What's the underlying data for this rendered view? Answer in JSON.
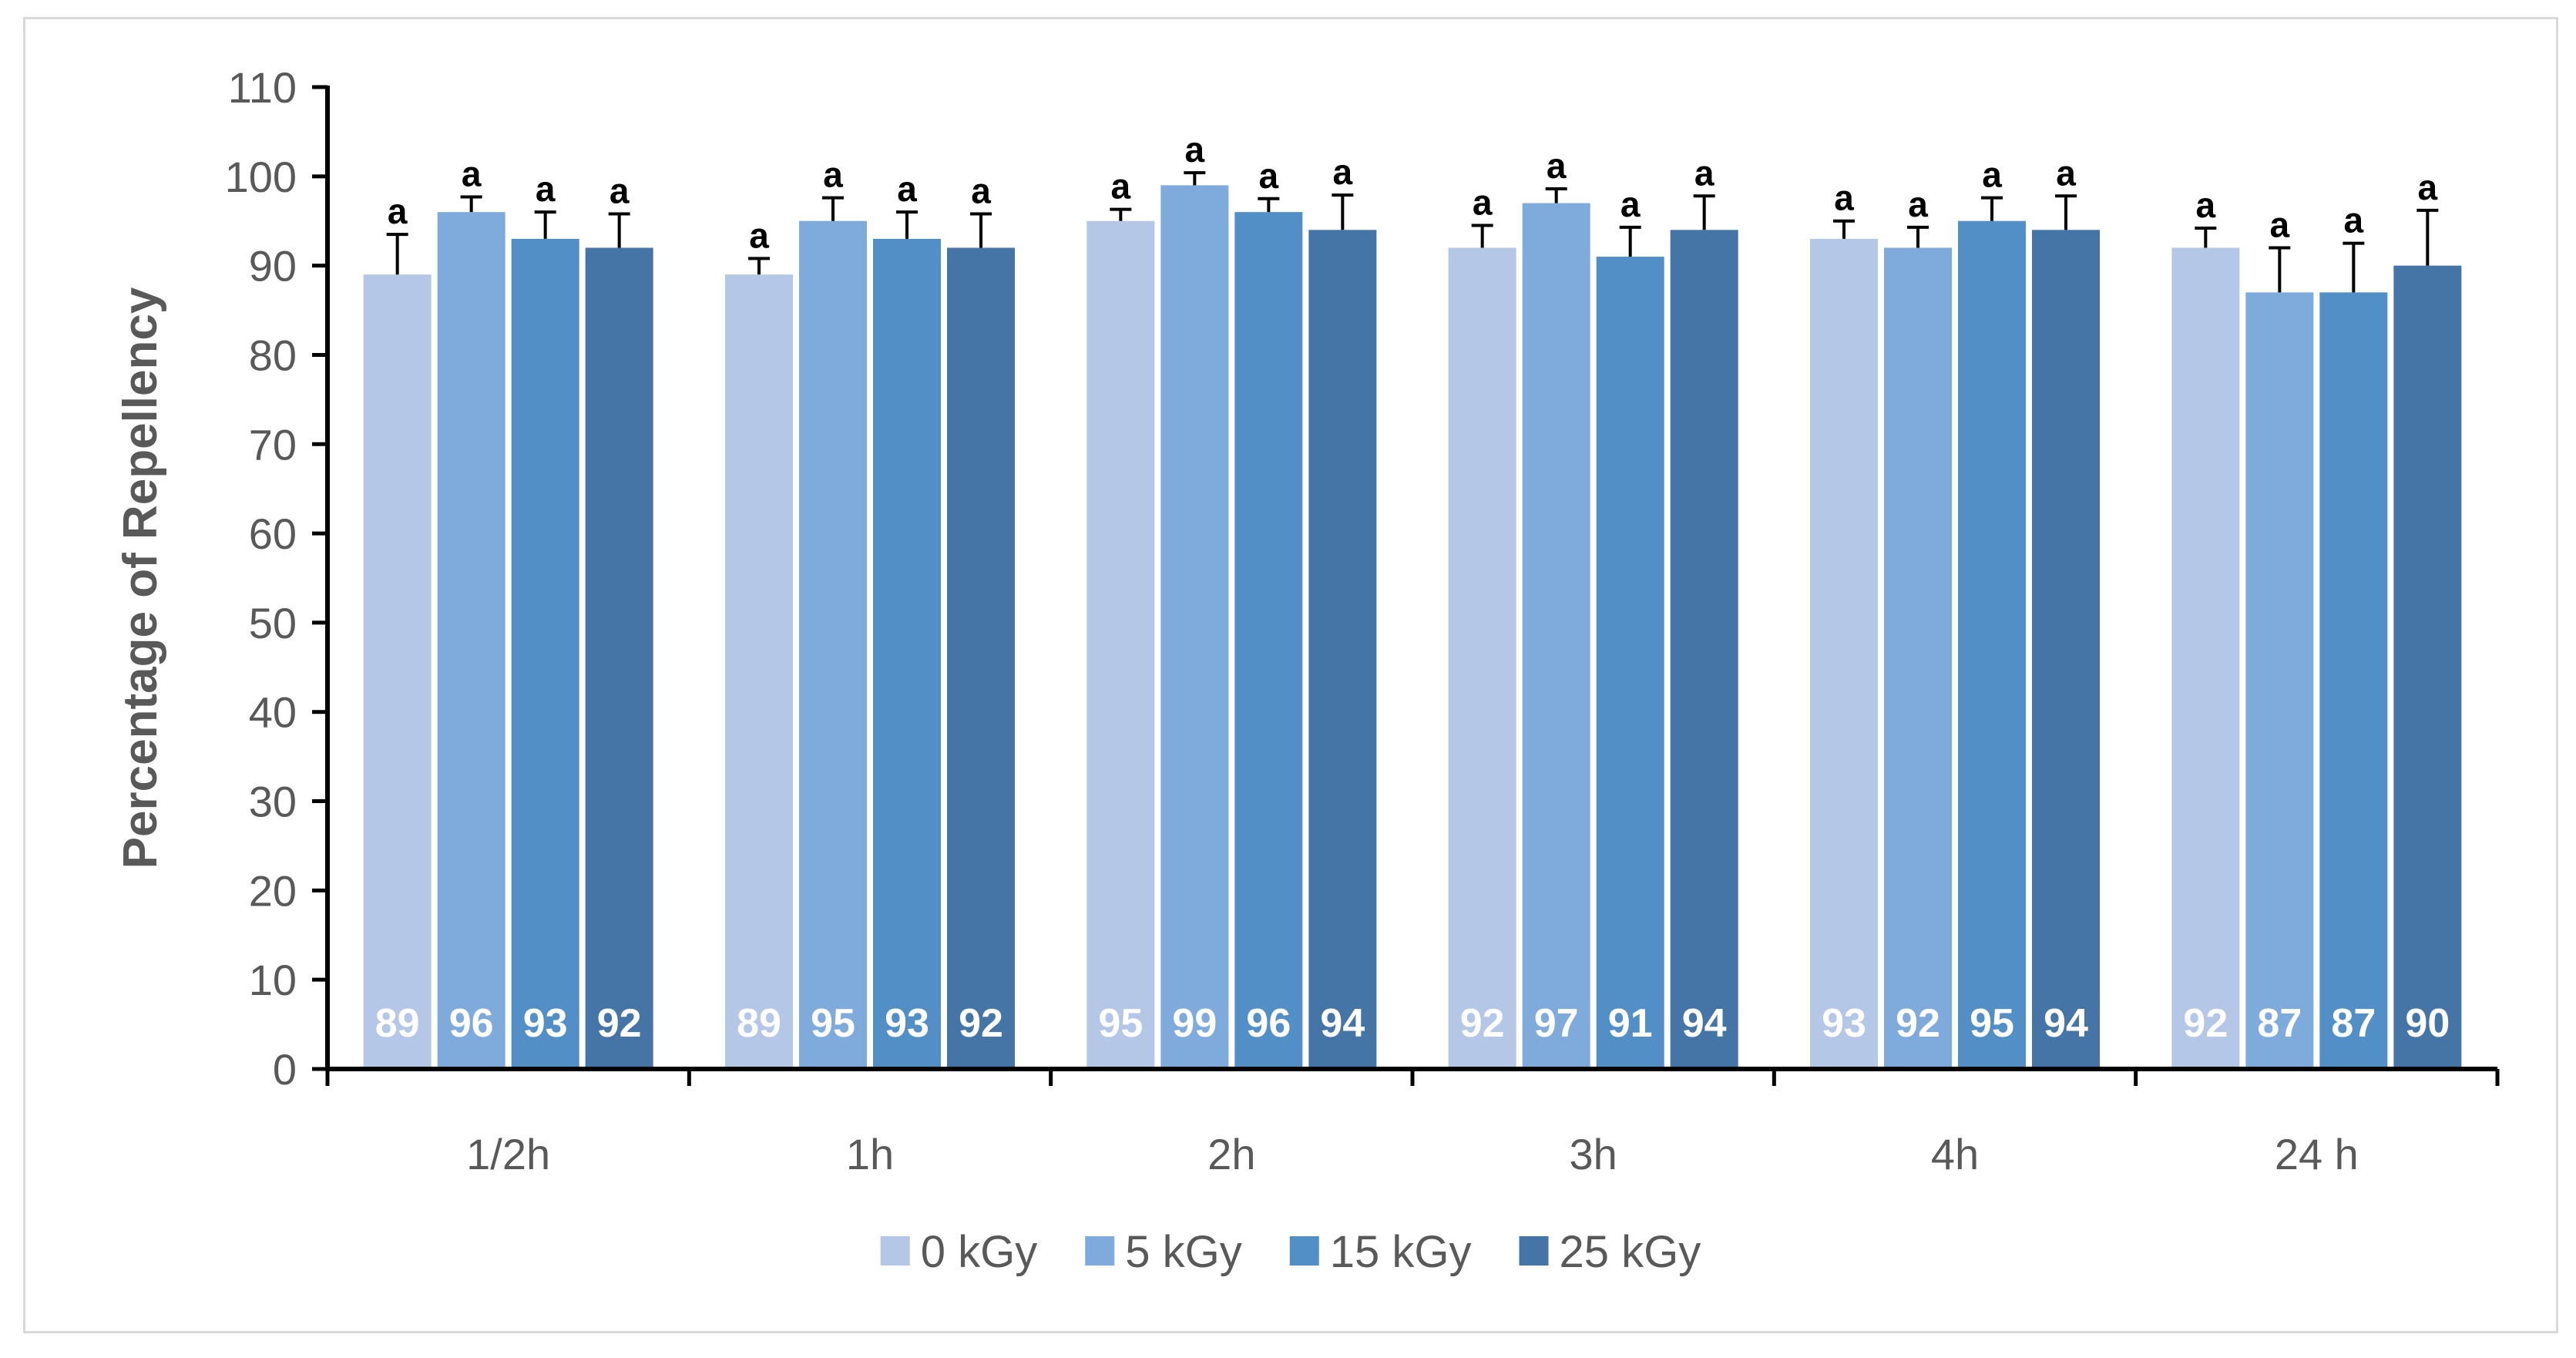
{
  "chart_data": {
    "type": "bar",
    "title": "",
    "xlabel": "",
    "ylabel": "Percentage of Repellency",
    "ylim": [
      0,
      110
    ],
    "yticks": [
      0,
      10,
      20,
      30,
      40,
      50,
      60,
      70,
      80,
      90,
      100,
      110
    ],
    "grid": false,
    "legend_position": "bottom",
    "categories": [
      "1/2h",
      "1h",
      "2h",
      "3h",
      "4h",
      "24 h"
    ],
    "series": [
      {
        "name": "0 kGy",
        "color": "#b4c7e7",
        "values": [
          89,
          89,
          95,
          92,
          93,
          92
        ],
        "errors": [
          4.5,
          1.8,
          1.3,
          2.5,
          2.0,
          2.2
        ],
        "significance": [
          "a",
          "a",
          "a",
          "a",
          "a",
          "a"
        ]
      },
      {
        "name": "5 kGy",
        "color": "#7faadc",
        "values": [
          96,
          95,
          99,
          97,
          92,
          87
        ],
        "errors": [
          1.7,
          2.6,
          1.4,
          1.6,
          2.3,
          5.0
        ],
        "significance": [
          "a",
          "a",
          "a",
          "a",
          "a",
          "a"
        ]
      },
      {
        "name": "15 kGy",
        "color": "#528fc6",
        "values": [
          93,
          93,
          96,
          91,
          95,
          87
        ],
        "errors": [
          3.0,
          3.0,
          1.5,
          3.3,
          2.6,
          5.5
        ],
        "significance": [
          "a",
          "a",
          "a",
          "a",
          "a",
          "a"
        ]
      },
      {
        "name": "25 kGy",
        "color": "#4575a6",
        "values": [
          92,
          92,
          94,
          94,
          94,
          90
        ],
        "errors": [
          3.8,
          3.8,
          3.9,
          3.8,
          3.8,
          6.2
        ],
        "significance": [
          "a",
          "a",
          "a",
          "a",
          "a",
          "a"
        ]
      }
    ]
  }
}
